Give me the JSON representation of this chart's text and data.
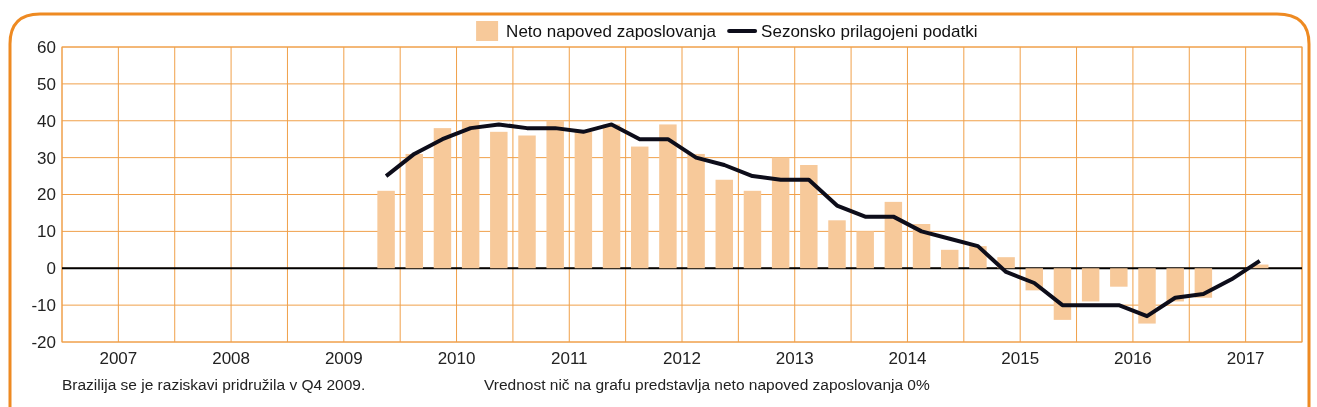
{
  "chart_data": {
    "type": "bar",
    "x": [
      2009.875,
      2010.125,
      2010.375,
      2010.625,
      2010.875,
      2011.125,
      2011.375,
      2011.625,
      2011.875,
      2012.125,
      2012.375,
      2012.625,
      2012.875,
      2013.125,
      2013.375,
      2013.625,
      2013.875,
      2014.125,
      2014.375,
      2014.625,
      2014.875,
      2015.125,
      2015.375,
      2015.625,
      2015.875,
      2016.125,
      2016.375,
      2016.625,
      2016.875,
      2017.125,
      2017.375,
      2017.625
    ],
    "series": [
      {
        "name": "Neto napoved zaposlovanja",
        "color": "#f7c99a",
        "values": [
          21,
          31,
          38,
          40,
          37,
          36,
          40,
          37,
          39,
          33,
          39,
          31,
          24,
          21,
          30,
          28,
          13,
          10,
          18,
          12,
          5,
          6,
          3,
          -6,
          -14,
          -9,
          -5,
          -15,
          -9,
          -8,
          0,
          1
        ]
      },
      {
        "name": "Sezonsko prilagojeni podatki",
        "type": "line",
        "color": "#0d0d1a",
        "values": [
          25,
          31,
          35,
          38,
          39,
          38,
          38,
          37,
          39,
          35,
          35,
          30,
          28,
          25,
          24,
          24,
          17,
          14,
          14,
          10,
          8,
          6,
          -1,
          -4,
          -10,
          -10,
          -10,
          -13,
          -8,
          -7,
          -3,
          2
        ]
      }
    ],
    "xlim": [
      2007,
      2018
    ],
    "xticks": [
      {
        "value": 2007,
        "label": null
      },
      {
        "value": 2007.5,
        "label": "2007"
      },
      {
        "value": 2008,
        "label": null
      },
      {
        "value": 2008.5,
        "label": "2008"
      },
      {
        "value": 2009,
        "label": null
      },
      {
        "value": 2009.5,
        "label": "2009"
      },
      {
        "value": 2010,
        "label": null
      },
      {
        "value": 2010.5,
        "label": "2010"
      },
      {
        "value": 2011,
        "label": null
      },
      {
        "value": 2011.5,
        "label": "2011"
      },
      {
        "value": 2012,
        "label": null
      },
      {
        "value": 2012.5,
        "label": "2012"
      },
      {
        "value": 2013,
        "label": null
      },
      {
        "value": 2013.5,
        "label": "2013"
      },
      {
        "value": 2014,
        "label": null
      },
      {
        "value": 2014.5,
        "label": "2014"
      },
      {
        "value": 2015,
        "label": null
      },
      {
        "value": 2015.5,
        "label": "2015"
      },
      {
        "value": 2016,
        "label": null
      },
      {
        "value": 2016.5,
        "label": "2016"
      },
      {
        "value": 2017,
        "label": null
      },
      {
        "value": 2017.5,
        "label": "2017"
      },
      {
        "value": 2018,
        "label": null
      }
    ],
    "ylim": [
      -20,
      60
    ],
    "yticks": [
      -20,
      -10,
      0,
      10,
      20,
      30,
      40,
      50,
      60
    ],
    "grid": true,
    "legend": "top",
    "marker": "none",
    "ref_lines": [
      {
        "axis": "y",
        "value": 0,
        "color": "#000000"
      }
    ],
    "annotations": [
      "Brazilija se je raziskavi pridružila v Q4 2009.",
      "Vrednost nič na grafu predstavlja neto napoved zaposlovanja 0%"
    ]
  }
}
